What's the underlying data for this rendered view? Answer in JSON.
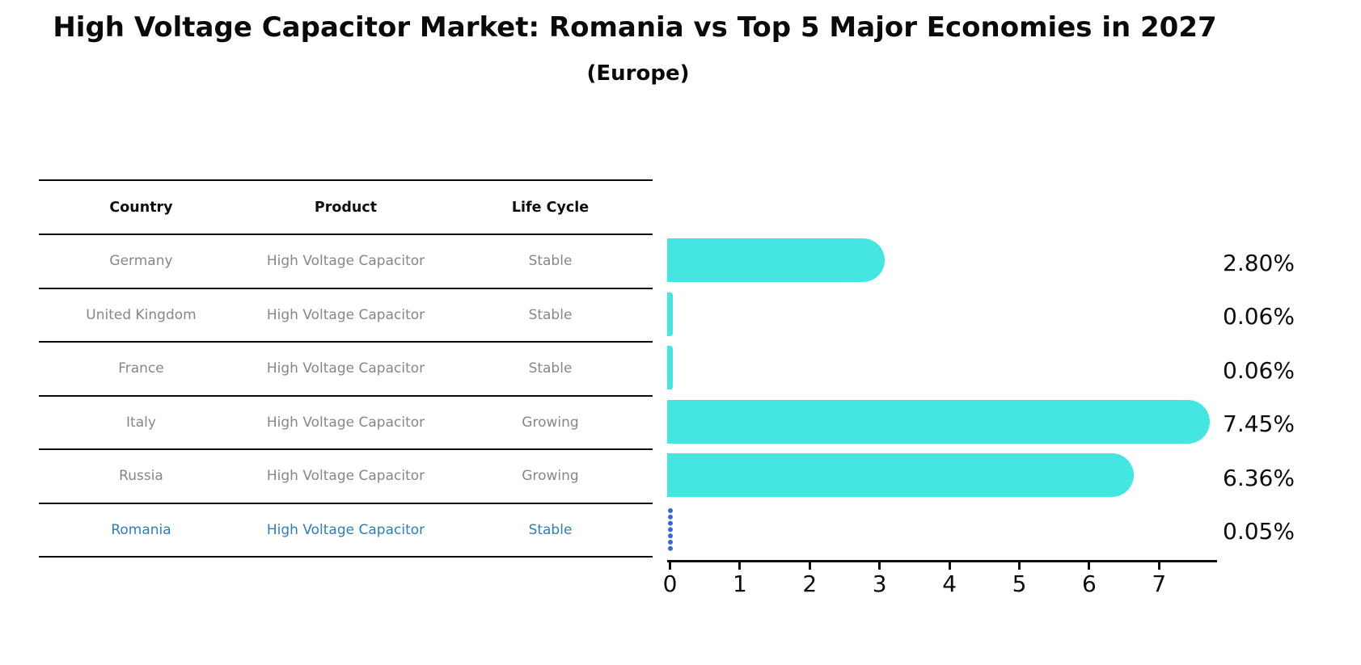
{
  "title": "High Voltage Capacitor Market: Romania vs Top 5 Major Economies in 2027",
  "subtitle": "(Europe)",
  "table": {
    "headers": [
      "Country",
      "Product",
      "Life Cycle"
    ],
    "rows": [
      {
        "country": "Germany",
        "product": "High Voltage Capacitor",
        "life_cycle": "Stable",
        "highlight": false
      },
      {
        "country": "United Kingdom",
        "product": "High Voltage Capacitor",
        "life_cycle": "Stable",
        "highlight": false
      },
      {
        "country": "France",
        "product": "High Voltage Capacitor",
        "life_cycle": "Stable",
        "highlight": false
      },
      {
        "country": "Italy",
        "product": "High Voltage Capacitor",
        "life_cycle": "Growing",
        "highlight": false
      },
      {
        "country": "Russia",
        "product": "High Voltage Capacitor",
        "life_cycle": "Growing",
        "highlight": false
      },
      {
        "country": "Romania",
        "product": "High Voltage Capacitor",
        "life_cycle": "Stable",
        "highlight": true
      }
    ]
  },
  "chart_data": {
    "type": "bar",
    "orientation": "horizontal",
    "title": "High Voltage Capacitor Market: Romania vs Top 5 Major Economies in 2027 (Europe)",
    "categories": [
      "Germany",
      "United Kingdom",
      "France",
      "Italy",
      "Russia",
      "Romania"
    ],
    "values": [
      2.8,
      0.06,
      0.06,
      7.45,
      6.36,
      0.05
    ],
    "value_labels": [
      "2.80%",
      "0.06%",
      "0.06%",
      "7.45%",
      "6.36%",
      "0.05%"
    ],
    "x_ticks": [
      "0",
      "1",
      "2",
      "3",
      "4",
      "5",
      "6",
      "7"
    ],
    "xlim": [
      0,
      7.87
    ],
    "grid": false,
    "legend": false,
    "bar_color": "#45e6e1",
    "highlight_color": "#3968d4",
    "highlight_index": 5,
    "highlight_style": "dotted"
  },
  "colors": {
    "bar": "#45e6e1",
    "highlight_blue": "#3968d4",
    "highlight_text": "#2e7dbe",
    "text_gray": "#878787",
    "text_black": "#0d0d0d"
  }
}
